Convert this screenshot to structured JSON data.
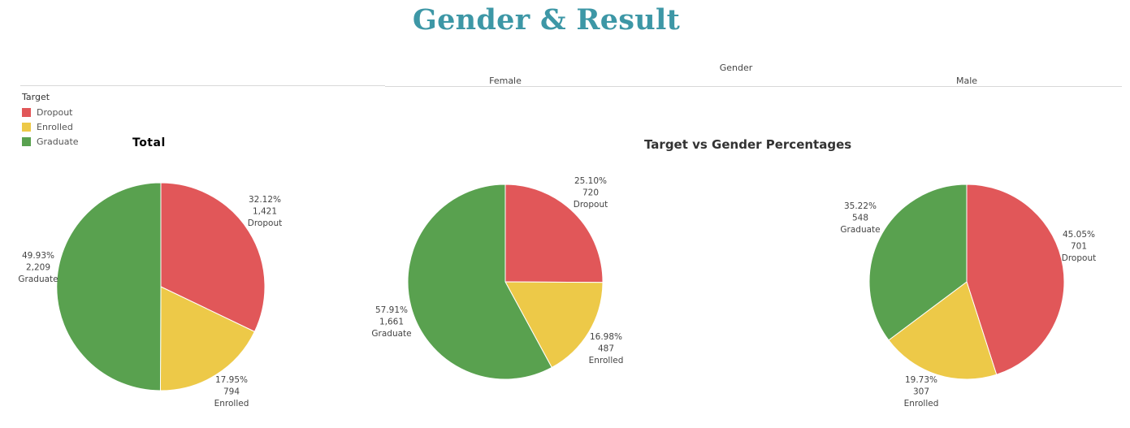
{
  "title": "Gender & Result",
  "header": {
    "group_label": "Gender",
    "columns": [
      "Female",
      "Male"
    ]
  },
  "legend": {
    "title": "Target",
    "items": [
      {
        "label": "Dropout",
        "color": "#e15759"
      },
      {
        "label": "Enrolled",
        "color": "#edc948"
      },
      {
        "label": "Graduate",
        "color": "#59a14f"
      }
    ]
  },
  "total_title": "Total",
  "percentages_title": "Target vs Gender Percentages",
  "chart_data": [
    {
      "type": "pie",
      "title": "Total",
      "slices": [
        {
          "label": "Dropout",
          "percent": "32.12%",
          "count": "1,421",
          "value": 1421,
          "color": "#e15759"
        },
        {
          "label": "Enrolled",
          "percent": "17.95%",
          "count": "794",
          "value": 794,
          "color": "#edc948"
        },
        {
          "label": "Graduate",
          "percent": "49.93%",
          "count": "2,209",
          "value": 2209,
          "color": "#59a14f"
        }
      ]
    },
    {
      "type": "pie",
      "title": "Female",
      "slices": [
        {
          "label": "Dropout",
          "percent": "25.10%",
          "count": "720",
          "value": 720,
          "color": "#e15759"
        },
        {
          "label": "Enrolled",
          "percent": "16.98%",
          "count": "487",
          "value": 487,
          "color": "#edc948"
        },
        {
          "label": "Graduate",
          "percent": "57.91%",
          "count": "1,661",
          "value": 1661,
          "color": "#59a14f"
        }
      ]
    },
    {
      "type": "pie",
      "title": "Male",
      "slices": [
        {
          "label": "Dropout",
          "percent": "45.05%",
          "count": "701",
          "value": 701,
          "color": "#e15759"
        },
        {
          "label": "Enrolled",
          "percent": "19.73%",
          "count": "307",
          "value": 307,
          "color": "#edc948"
        },
        {
          "label": "Graduate",
          "percent": "35.22%",
          "count": "548",
          "value": 548,
          "color": "#59a14f"
        }
      ]
    }
  ]
}
